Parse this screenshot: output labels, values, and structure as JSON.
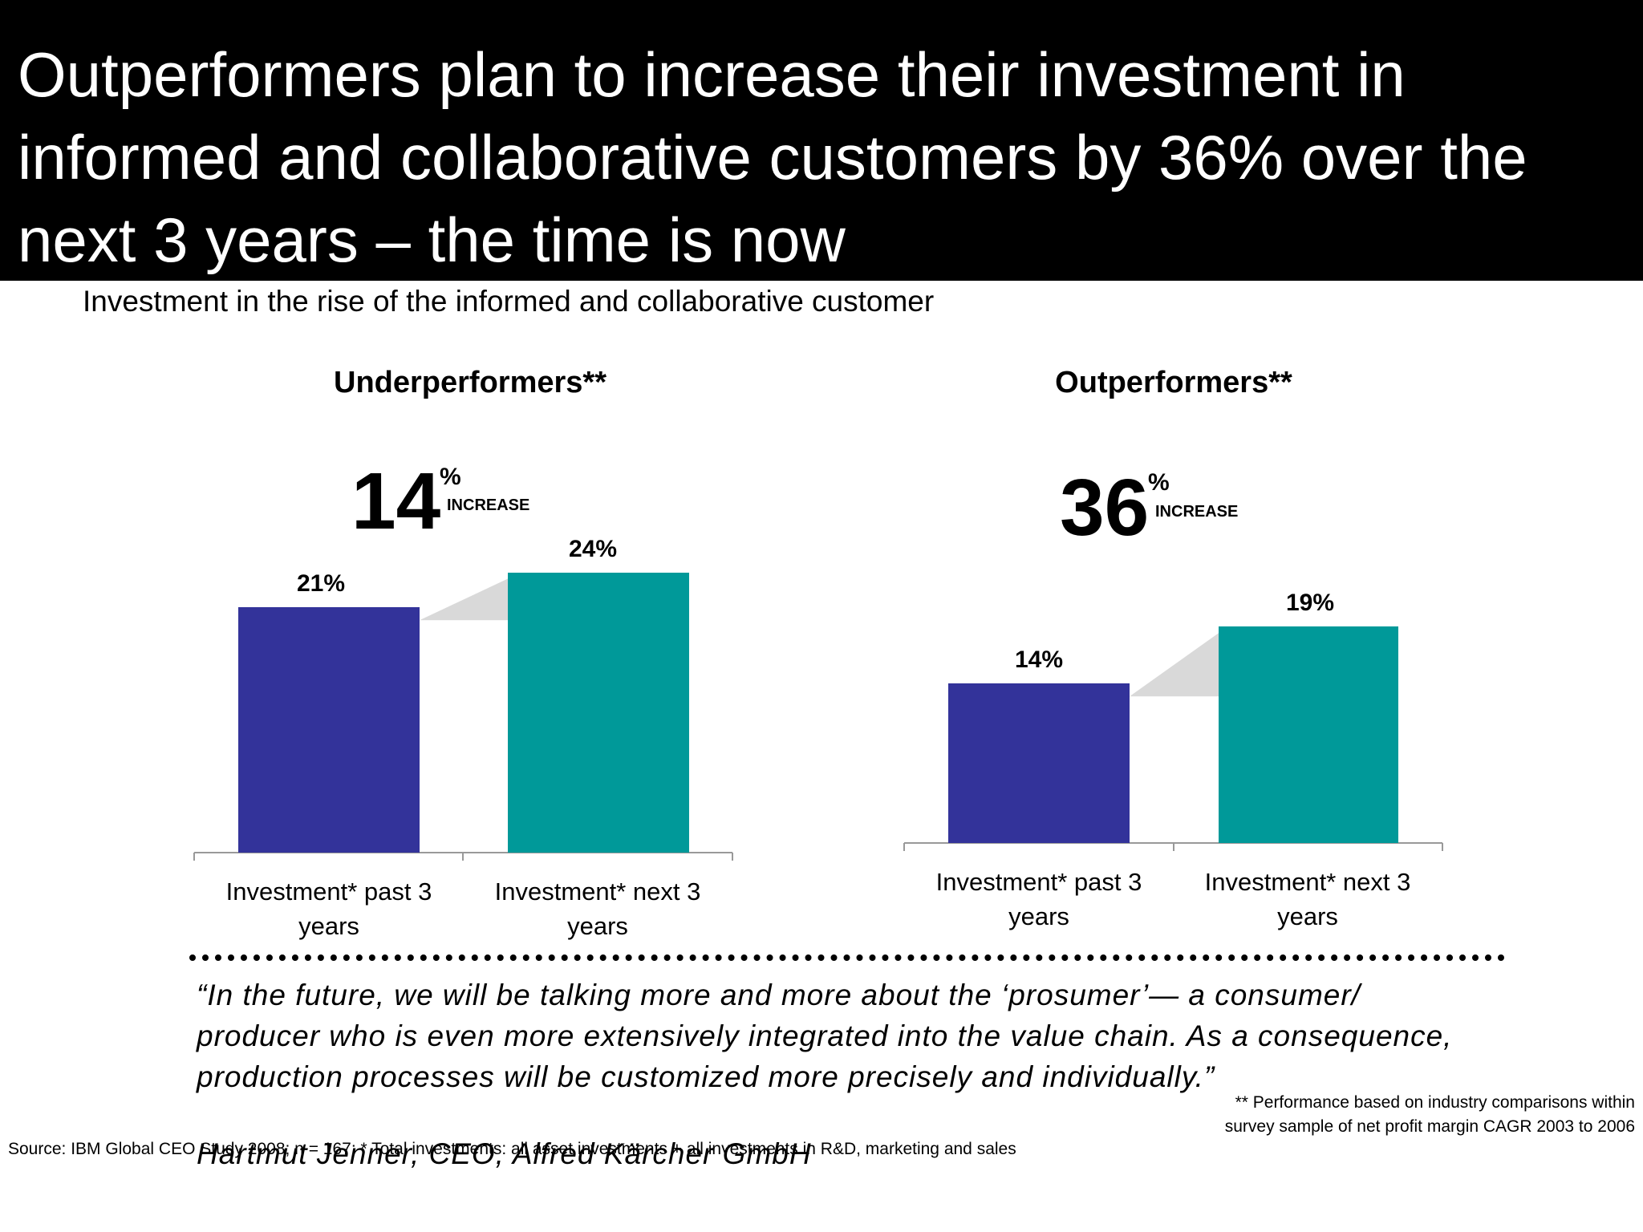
{
  "title": "Outperformers plan to increase their investment in informed and collaborative customers by 36% over the next 3 years – the time is now",
  "subtitle": "Investment in the rise of the informed and collaborative customer",
  "colors": {
    "past": "#33339a",
    "next": "#009999",
    "connector": "#d9d9d9",
    "header_bg": "#000000"
  },
  "chart_data": [
    {
      "type": "bar",
      "title": "Underperformers**",
      "increase": {
        "value": "14",
        "symbol": "%",
        "label": "INCREASE"
      },
      "categories": [
        "Investment* past 3 years",
        "Investment* next 3 years"
      ],
      "values": [
        21,
        24
      ],
      "value_labels": [
        "21%",
        "24%"
      ]
    },
    {
      "type": "bar",
      "title": "Outperformers**",
      "increase": {
        "value": "36",
        "symbol": "%",
        "label": "INCREASE"
      },
      "categories": [
        "Investment* past 3 years",
        "Investment* next 3 years"
      ],
      "values": [
        14,
        19
      ],
      "value_labels": [
        "14%",
        "19%"
      ]
    }
  ],
  "quote": "“In the future, we will be talking more and more about the ‘prosumer’— a consumer/ producer who is even more extensively integrated into the value chain. As a consequence, production processes will be customized more precisely and individually.”",
  "attribution": "Hartmut Jenner, CEO, Alfred Kärcher GmbH",
  "source": "Source: IBM Global CEO Study 2008; n = 167; * Total investments: all asset investments + all investments in R&D, marketing and sales",
  "footnote": "** Performance based on industry comparisons within survey sample of net profit margin CAGR 2003 to 2006"
}
